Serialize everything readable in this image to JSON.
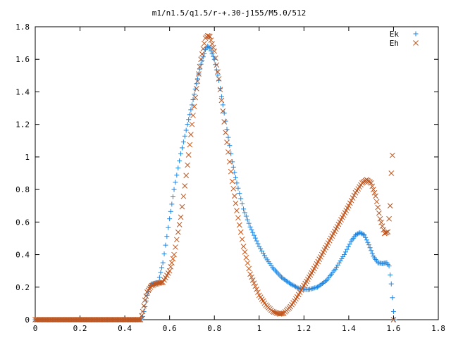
{
  "chart_data": {
    "type": "scatter",
    "title": "m1/n1.5/q1.5/r-+.30-j155/M5.0/512",
    "xlabel": "",
    "ylabel": "",
    "xlim": [
      0,
      1.8
    ],
    "ylim": [
      0,
      1.8
    ],
    "xticks": [
      {
        "value": 0,
        "label": "0"
      },
      {
        "value": 0.2,
        "label": "0.2"
      },
      {
        "value": 0.4,
        "label": "0.4"
      },
      {
        "value": 0.6,
        "label": "0.6"
      },
      {
        "value": 0.8,
        "label": "0.8"
      },
      {
        "value": 1.0,
        "label": "1"
      },
      {
        "value": 1.2,
        "label": "1.2"
      },
      {
        "value": 1.4,
        "label": "1.4"
      },
      {
        "value": 1.6,
        "label": "1.6"
      },
      {
        "value": 1.8,
        "label": "1.8"
      }
    ],
    "yticks": [
      {
        "value": 0,
        "label": "0"
      },
      {
        "value": 0.2,
        "label": "0.2"
      },
      {
        "value": 0.4,
        "label": "0.4"
      },
      {
        "value": 0.6,
        "label": "0.6"
      },
      {
        "value": 0.8,
        "label": "0.8"
      },
      {
        "value": 1.0,
        "label": "1"
      },
      {
        "value": 1.2,
        "label": "1.2"
      },
      {
        "value": 1.4,
        "label": "1.4"
      },
      {
        "value": 1.6,
        "label": "1.6"
      },
      {
        "value": 1.8,
        "label": "1.8"
      }
    ],
    "grid": false,
    "legend_position": "top-right",
    "series": [
      {
        "name": "Ek",
        "marker": "plus",
        "color": "#1f86e0",
        "points": [
          [
            0.0,
            0
          ],
          [
            0.1,
            0
          ],
          [
            0.2,
            0
          ],
          [
            0.3,
            0
          ],
          [
            0.4,
            0
          ],
          [
            0.47,
            0
          ],
          [
            0.48,
            0.02
          ],
          [
            0.49,
            0.08
          ],
          [
            0.5,
            0.15
          ],
          [
            0.51,
            0.2
          ],
          [
            0.52,
            0.22
          ],
          [
            0.55,
            0.23
          ],
          [
            0.57,
            0.35
          ],
          [
            0.6,
            0.62
          ],
          [
            0.62,
            0.8
          ],
          [
            0.65,
            1.02
          ],
          [
            0.68,
            1.2
          ],
          [
            0.7,
            1.32
          ],
          [
            0.72,
            1.45
          ],
          [
            0.74,
            1.57
          ],
          [
            0.76,
            1.66
          ],
          [
            0.77,
            1.68
          ],
          [
            0.78,
            1.67
          ],
          [
            0.8,
            1.6
          ],
          [
            0.82,
            1.47
          ],
          [
            0.85,
            1.22
          ],
          [
            0.88,
            0.97
          ],
          [
            0.9,
            0.84
          ],
          [
            0.93,
            0.68
          ],
          [
            0.96,
            0.57
          ],
          [
            1.0,
            0.45
          ],
          [
            1.03,
            0.38
          ],
          [
            1.06,
            0.32
          ],
          [
            1.1,
            0.26
          ],
          [
            1.14,
            0.22
          ],
          [
            1.18,
            0.19
          ],
          [
            1.22,
            0.185
          ],
          [
            1.26,
            0.2
          ],
          [
            1.3,
            0.24
          ],
          [
            1.34,
            0.31
          ],
          [
            1.38,
            0.4
          ],
          [
            1.41,
            0.48
          ],
          [
            1.43,
            0.52
          ],
          [
            1.45,
            0.535
          ],
          [
            1.47,
            0.52
          ],
          [
            1.49,
            0.46
          ],
          [
            1.51,
            0.39
          ],
          [
            1.53,
            0.35
          ],
          [
            1.55,
            0.345
          ],
          [
            1.57,
            0.35
          ],
          [
            1.58,
            0.33
          ],
          [
            1.59,
            0.22
          ],
          [
            1.6,
            0.05
          ],
          [
            1.605,
            0.0
          ]
        ]
      },
      {
        "name": "Eh",
        "marker": "cross",
        "color": "#c0561e",
        "points": [
          [
            0.0,
            0
          ],
          [
            0.1,
            0
          ],
          [
            0.2,
            0
          ],
          [
            0.3,
            0
          ],
          [
            0.4,
            0
          ],
          [
            0.47,
            0
          ],
          [
            0.48,
            0.05
          ],
          [
            0.49,
            0.12
          ],
          [
            0.5,
            0.17
          ],
          [
            0.52,
            0.21
          ],
          [
            0.55,
            0.225
          ],
          [
            0.57,
            0.23
          ],
          [
            0.6,
            0.3
          ],
          [
            0.62,
            0.4
          ],
          [
            0.65,
            0.63
          ],
          [
            0.68,
            0.95
          ],
          [
            0.7,
            1.2
          ],
          [
            0.72,
            1.42
          ],
          [
            0.74,
            1.6
          ],
          [
            0.76,
            1.73
          ],
          [
            0.77,
            1.745
          ],
          [
            0.78,
            1.74
          ],
          [
            0.8,
            1.65
          ],
          [
            0.82,
            1.48
          ],
          [
            0.85,
            1.15
          ],
          [
            0.88,
            0.85
          ],
          [
            0.9,
            0.67
          ],
          [
            0.93,
            0.45
          ],
          [
            0.96,
            0.28
          ],
          [
            1.0,
            0.15
          ],
          [
            1.03,
            0.09
          ],
          [
            1.06,
            0.05
          ],
          [
            1.09,
            0.035
          ],
          [
            1.11,
            0.04
          ],
          [
            1.14,
            0.08
          ],
          [
            1.17,
            0.14
          ],
          [
            1.2,
            0.21
          ],
          [
            1.24,
            0.3
          ],
          [
            1.28,
            0.4
          ],
          [
            1.32,
            0.5
          ],
          [
            1.36,
            0.6
          ],
          [
            1.4,
            0.7
          ],
          [
            1.43,
            0.78
          ],
          [
            1.46,
            0.84
          ],
          [
            1.48,
            0.86
          ],
          [
            1.5,
            0.84
          ],
          [
            1.52,
            0.76
          ],
          [
            1.54,
            0.62
          ],
          [
            1.56,
            0.53
          ],
          [
            1.575,
            0.54
          ],
          [
            1.585,
            0.7
          ],
          [
            1.59,
            0.9
          ],
          [
            1.595,
            1.01
          ],
          [
            1.6,
            0.0
          ]
        ]
      }
    ]
  }
}
